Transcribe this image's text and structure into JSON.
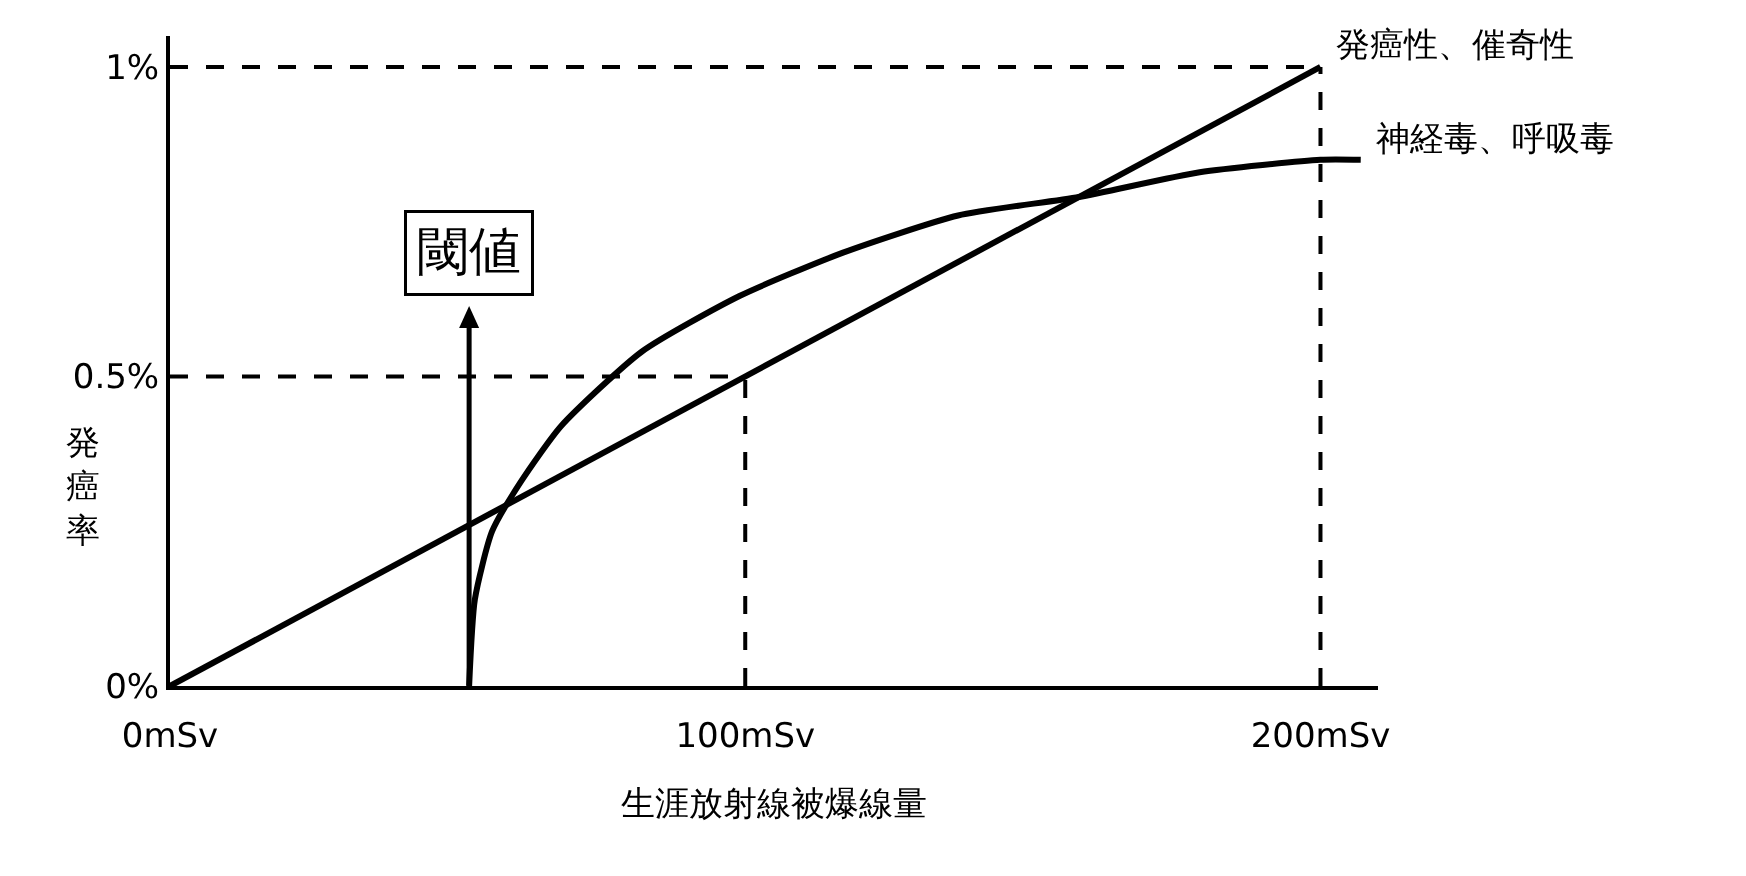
{
  "chart_data": {
    "type": "line",
    "xlabel": "生涯放射線被爆線量",
    "ylabel": "発癌率",
    "xlim": [
      0,
      210
    ],
    "ylim": [
      0,
      1.05
    ],
    "xticks": [
      {
        "value": 0,
        "label": "0mSv"
      },
      {
        "value": 100,
        "label": "100mSv"
      },
      {
        "value": 200,
        "label": "200mSv"
      }
    ],
    "yticks": [
      {
        "value": 0,
        "label": "0%"
      },
      {
        "value": 0.5,
        "label": "0.5%"
      },
      {
        "value": 1,
        "label": "1%"
      }
    ],
    "series": [
      {
        "name": "発癌性、催奇性",
        "color": "#000000",
        "x": [
          0,
          200
        ],
        "values": [
          0,
          1
        ]
      },
      {
        "name": "神経毒、呼吸毒",
        "color": "#000000",
        "x": [
          52,
          53,
          56,
          61,
          68,
          82,
          99,
          117,
          137,
          158,
          179,
          200,
          207
        ],
        "values": [
          0,
          0.14,
          0.25,
          0.33,
          0.42,
          0.54,
          0.63,
          0.7,
          0.76,
          0.79,
          0.83,
          0.85,
          0.85
        ]
      }
    ],
    "ref_lines": [
      {
        "axis": "x",
        "value": 100,
        "line_style": "dashed",
        "color": "#000000"
      },
      {
        "axis": "x",
        "value": 200,
        "line_style": "dashed",
        "color": "#000000"
      },
      {
        "axis": "y",
        "value": 0.5,
        "line_style": "dashed",
        "color": "#000000"
      },
      {
        "axis": "y",
        "value": 1,
        "line_style": "dashed",
        "color": "#000000"
      }
    ],
    "annotations": [
      {
        "text": "閾値",
        "x": 52,
        "y": 0
      }
    ],
    "legend": false,
    "grid": false,
    "marker": "none",
    "line_style": "solid"
  }
}
